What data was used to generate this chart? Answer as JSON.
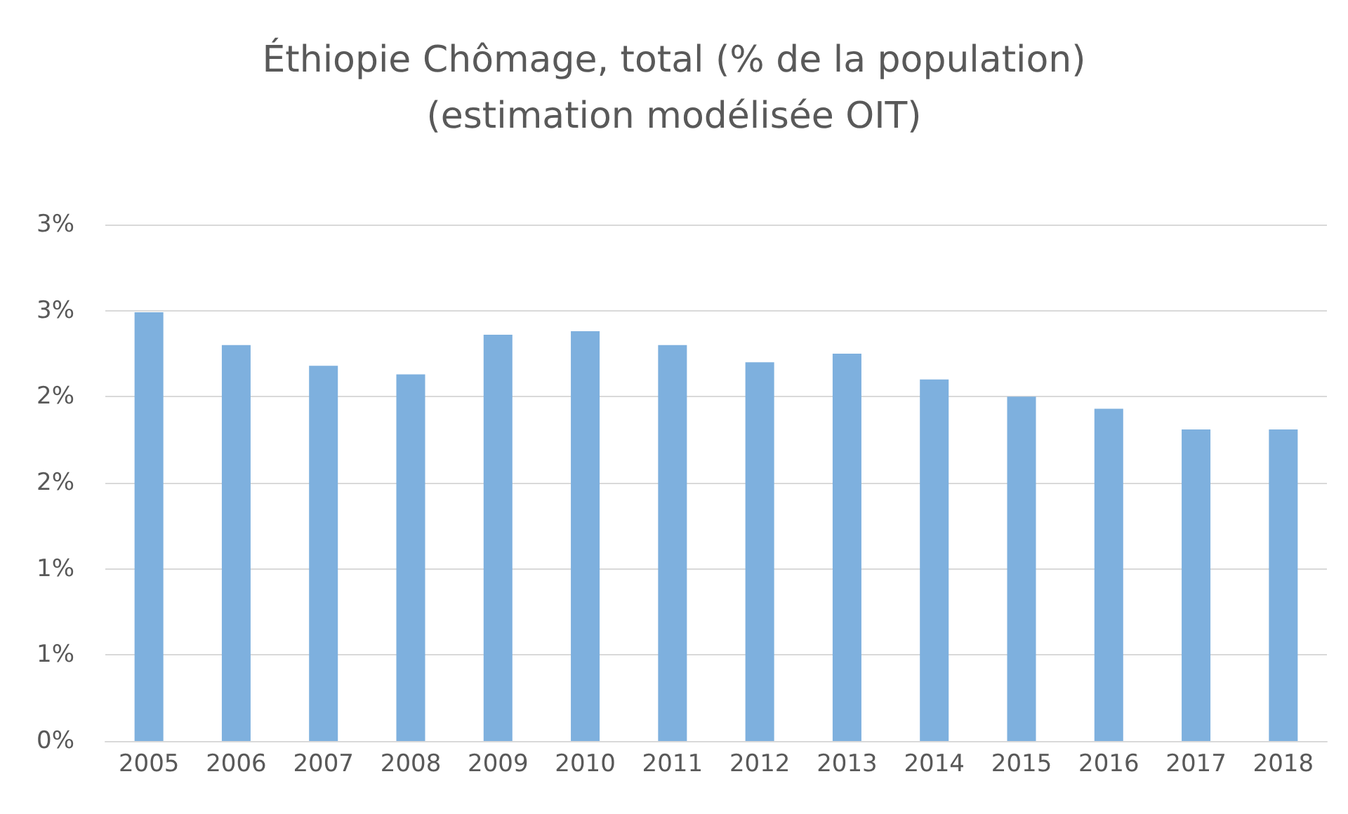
{
  "chart_data": {
    "type": "bar",
    "title": "Éthiopie Chômage, total (% de la population)\n(estimation modélisée OIT)",
    "categories": [
      "2005",
      "2006",
      "2007",
      "2008",
      "2009",
      "2010",
      "2011",
      "2012",
      "2013",
      "2014",
      "2015",
      "2016",
      "2017",
      "2018"
    ],
    "values": [
      2.49,
      2.3,
      2.18,
      2.13,
      2.36,
      2.38,
      2.3,
      2.2,
      2.25,
      2.1,
      2.0,
      1.93,
      1.81,
      1.81
    ],
    "color": "#7eb0de",
    "ylim": [
      0,
      3
    ],
    "yticks": [
      {
        "value": 0,
        "label": "0%"
      },
      {
        "value": 0.5,
        "label": "1%"
      },
      {
        "value": 1,
        "label": "1%"
      },
      {
        "value": 1.5,
        "label": "2%"
      },
      {
        "value": 2,
        "label": "2%"
      },
      {
        "value": 2.5,
        "label": "3%"
      },
      {
        "value": 3,
        "label": "3%"
      }
    ],
    "grid": "y"
  }
}
